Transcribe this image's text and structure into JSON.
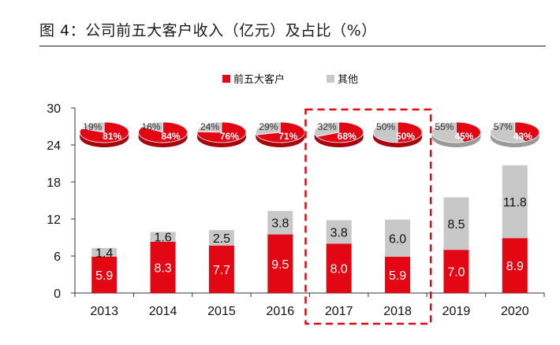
{
  "title": "图 4：公司前五大客户收入（亿元）及占比（%）",
  "colors": {
    "top5": "#e30613",
    "other": "#c8c8c8",
    "highlight": "#e30613"
  },
  "chart_data": {
    "type": "bar",
    "stacked": true,
    "categories": [
      "2013",
      "2014",
      "2015",
      "2016",
      "2017",
      "2018",
      "2019",
      "2020"
    ],
    "series": [
      {
        "name": "前五大客户",
        "values": [
          5.9,
          8.3,
          7.7,
          9.5,
          8.0,
          5.9,
          7.0,
          8.9
        ],
        "labels": [
          "5.9",
          "8.3",
          "7.7",
          "9.5",
          "8.0",
          "5.9",
          "7.0",
          "8.9"
        ]
      },
      {
        "name": "其他",
        "values": [
          1.4,
          1.6,
          2.5,
          3.8,
          3.8,
          6.0,
          8.5,
          11.8
        ],
        "labels": [
          "1.4",
          "1.6",
          "2.5",
          "3.8",
          "3.8",
          "6.0",
          "8.5",
          "11.8"
        ]
      }
    ],
    "ylim": [
      0,
      30
    ],
    "yticks": [
      "0",
      "6",
      "12",
      "18",
      "24",
      "30"
    ],
    "legend_position": "top",
    "highlight_categories": [
      "2017",
      "2018"
    ],
    "pies": [
      {
        "top5": 81,
        "other": 19,
        "top5_label": "81%",
        "other_label": "19%"
      },
      {
        "top5": 84,
        "other": 16,
        "top5_label": "84%",
        "other_label": "16%"
      },
      {
        "top5": 76,
        "other": 24,
        "top5_label": "76%",
        "other_label": "24%"
      },
      {
        "top5": 71,
        "other": 29,
        "top5_label": "71%",
        "other_label": "29%"
      },
      {
        "top5": 68,
        "other": 32,
        "top5_label": "68%",
        "other_label": "32%"
      },
      {
        "top5": 50,
        "other": 50,
        "top5_label": "50%",
        "other_label": "50%"
      },
      {
        "top5": 45,
        "other": 55,
        "top5_label": "45%",
        "other_label": "55%"
      },
      {
        "top5": 43,
        "other": 57,
        "top5_label": "43%",
        "other_label": "57%"
      }
    ]
  }
}
